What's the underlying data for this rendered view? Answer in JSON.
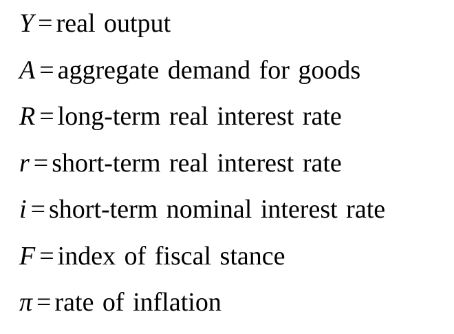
{
  "definitions": [
    {
      "symbol": "Y",
      "equals": "=",
      "description": "real output"
    },
    {
      "symbol": "A",
      "equals": "=",
      "description": "aggregate demand for goods"
    },
    {
      "symbol": "R",
      "equals": "=",
      "description": "long-term real interest rate"
    },
    {
      "symbol": "r",
      "equals": "=",
      "description": "short-term real interest rate"
    },
    {
      "symbol": "i",
      "equals": "=",
      "description": "short-term nominal interest rate"
    },
    {
      "symbol": "F",
      "equals": "=",
      "description": "index of fiscal stance"
    },
    {
      "symbol": "π",
      "equals": "=",
      "description": "rate of inflation"
    }
  ]
}
